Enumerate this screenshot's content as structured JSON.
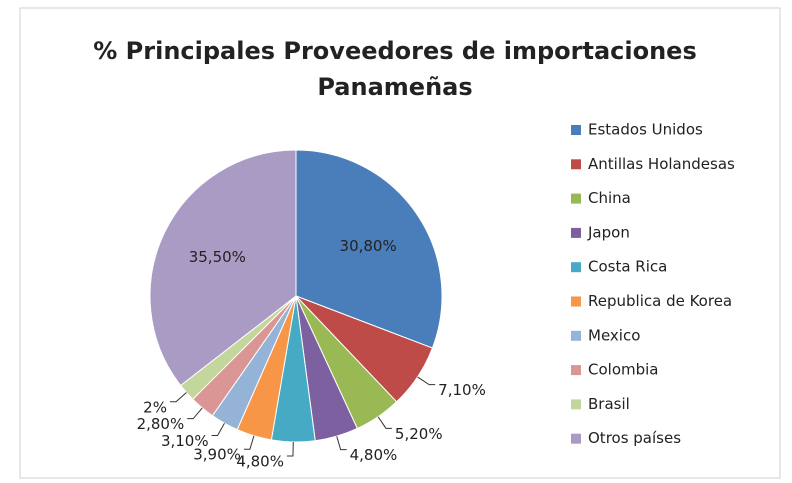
{
  "chart_data": {
    "type": "pie",
    "title": "% Principales Proveedores de importaciones Panameñas",
    "categories": [
      "Estados Unidos",
      "Antillas Holandesas",
      "China",
      "Japon",
      "Costa Rica",
      "Republica de Korea",
      "Mexico",
      "Colombia",
      "Brasil",
      "Otros países"
    ],
    "values": [
      30.8,
      7.1,
      5.2,
      4.8,
      4.8,
      3.9,
      3.1,
      2.8,
      2,
      35.5
    ],
    "value_labels": [
      "30,80%",
      "7,10%",
      "5,20%",
      "4,80%",
      "4,80%",
      "3,90%",
      "3,10%",
      "2,80%",
      "2%",
      "35,50%"
    ],
    "colors": [
      "#4a7ebb",
      "#be4b48",
      "#98b954",
      "#7d60a0",
      "#46aac5",
      "#f79646",
      "#95b3d7",
      "#d99694",
      "#c3d69b",
      "#a99bc4"
    ],
    "legend": "right"
  }
}
